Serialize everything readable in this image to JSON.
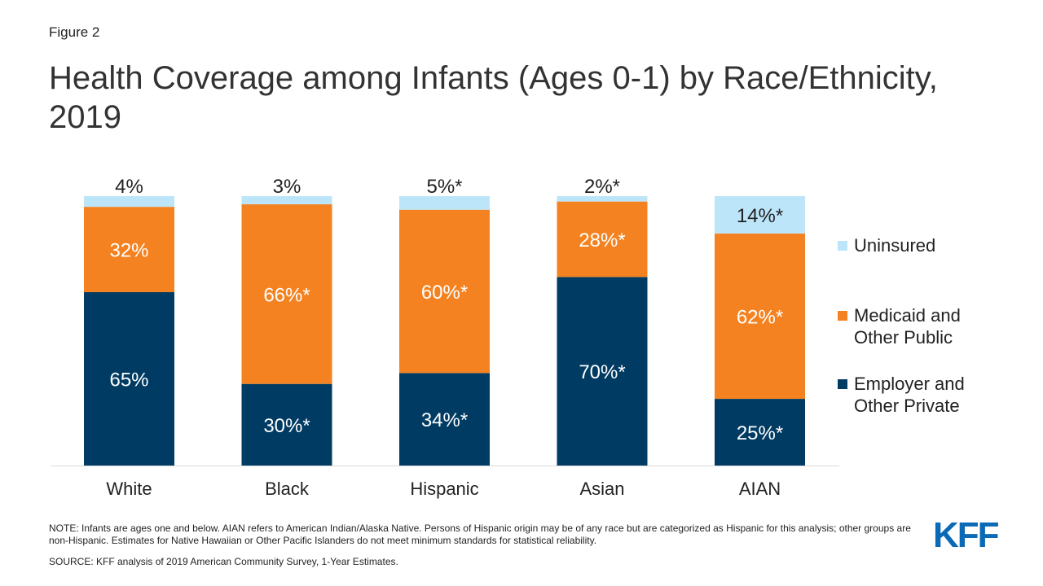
{
  "figure_label": "Figure 2",
  "title": "Health Coverage among Infants (Ages 0-1) by Race/Ethnicity, 2019",
  "colors": {
    "uninsured": "#bde5fa",
    "medicaid": "#f58220",
    "employer": "#003b63",
    "logo": "#0b6ab5"
  },
  "legend": [
    {
      "label": "Uninsured",
      "color": "#bde5fa"
    },
    {
      "label": "Medicaid and\nOther Public",
      "color": "#f58220"
    },
    {
      "label": "Employer and\nOther Private",
      "color": "#003b63"
    }
  ],
  "chart_data": {
    "type": "bar",
    "stacked": true,
    "categories": [
      "White",
      "Black",
      "Hispanic",
      "Asian",
      "AIAN"
    ],
    "series": [
      {
        "name": "Employer and Other Private",
        "values": [
          65,
          30,
          34,
          70,
          25
        ],
        "labels": [
          "65%",
          "30%*",
          "34%*",
          "70%*",
          "25%*"
        ]
      },
      {
        "name": "Medicaid and Other Public",
        "values": [
          32,
          66,
          60,
          28,
          62
        ],
        "labels": [
          "32%",
          "66%*",
          "60%*",
          "28%*",
          "62%*"
        ]
      },
      {
        "name": "Uninsured",
        "values": [
          4,
          3,
          5,
          2,
          14
        ],
        "labels": [
          "4%",
          "3%",
          "5%*",
          "2%*",
          "14%*"
        ]
      }
    ],
    "ylim": [
      0,
      100
    ],
    "grid": false,
    "legend_position": "right"
  },
  "note": "NOTE: Infants are ages one and below. AIAN refers to American Indian/Alaska Native. Persons of Hispanic origin may be of any race but are categorized as Hispanic for this analysis; other groups are non-Hispanic. Estimates for Native Hawaiian or Other Pacific Islanders do not meet minimum standards for statistical reliability.",
  "source": "SOURCE: KFF analysis of 2019 American Community Survey, 1-Year Estimates.",
  "logo_text": "KFF"
}
